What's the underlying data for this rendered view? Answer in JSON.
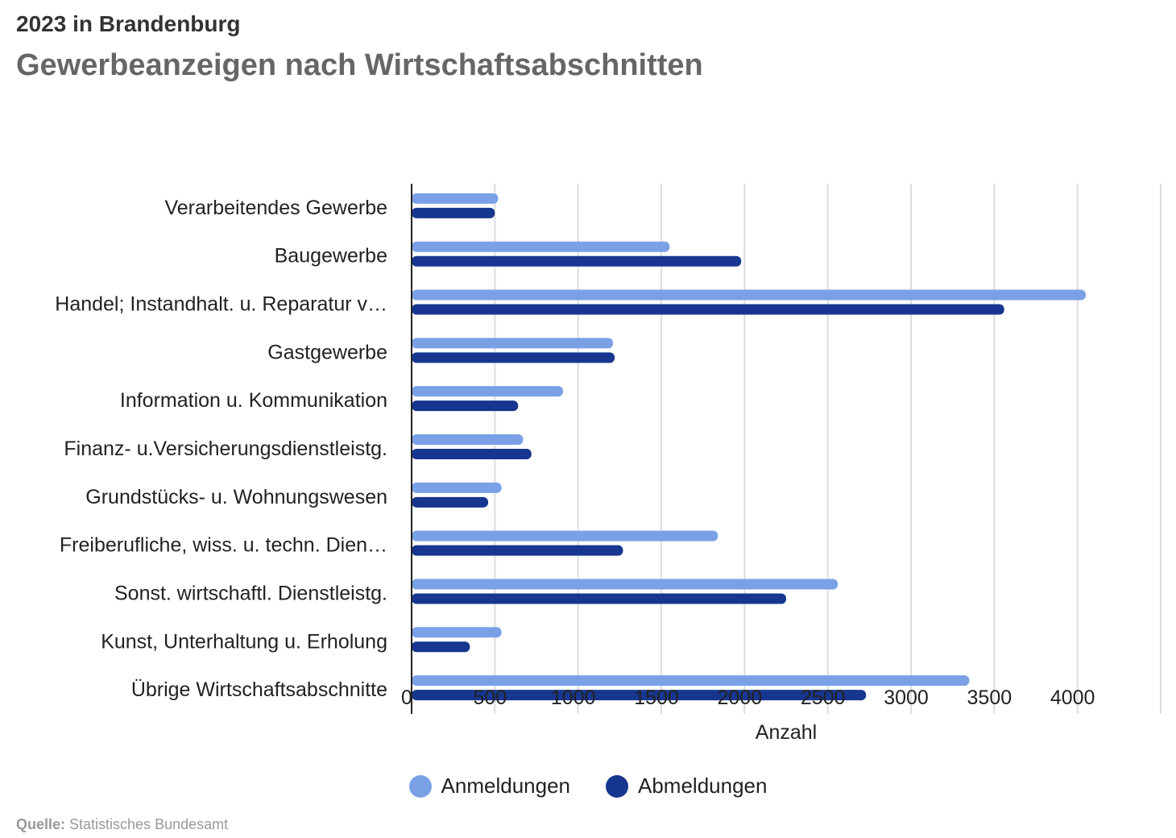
{
  "header": {
    "subtitle": "2023 in Brandenburg",
    "title": "Gewerbeanzeigen nach Wirtschaftsabschnitten"
  },
  "legend": {
    "items": [
      {
        "label": "Anmeldungen",
        "color": "#7aa1e6"
      },
      {
        "label": "Abmeldungen",
        "color": "#16368f"
      }
    ]
  },
  "source": {
    "label": "Quelle:",
    "text": "Statistisches Bundesamt"
  },
  "chart_data": {
    "type": "bar",
    "orientation": "horizontal",
    "title": "Gewerbeanzeigen nach Wirtschaftsabschnitten",
    "subtitle": "2023 in Brandenburg",
    "xlabel": "Anzahl",
    "ylabel": "",
    "xlim": [
      0,
      4500
    ],
    "grid": true,
    "legend_position": "bottom",
    "x_ticks": [
      "0",
      "500",
      "1000",
      "1500",
      "2000",
      "2500",
      "3000",
      "3500",
      "4000"
    ],
    "categories": [
      "Verarbeitendes Gewerbe",
      "Baugewerbe",
      "Handel; Instandhalt. u. Reparatur v…",
      "Gastgewerbe",
      "Information u. Kommunikation",
      "Finanz- u.Versicherungsdienstleistg.",
      "Grundstücks- u. Wohnungswesen",
      "Freiberufliche, wiss. u. techn. Dien…",
      "Sonst. wirtschaftl. Dienstleistg.",
      "Kunst, Unterhaltung u. Erholung",
      "Übrige Wirtschaftsabschnitte"
    ],
    "series": [
      {
        "name": "Anmeldungen",
        "color": "#7aa1e6",
        "values": [
          520,
          1550,
          4050,
          1210,
          910,
          670,
          540,
          1840,
          2560,
          540,
          3350
        ]
      },
      {
        "name": "Abmeldungen",
        "color": "#16368f",
        "values": [
          500,
          1980,
          3560,
          1220,
          640,
          720,
          460,
          1270,
          2250,
          350,
          2730
        ]
      }
    ]
  }
}
